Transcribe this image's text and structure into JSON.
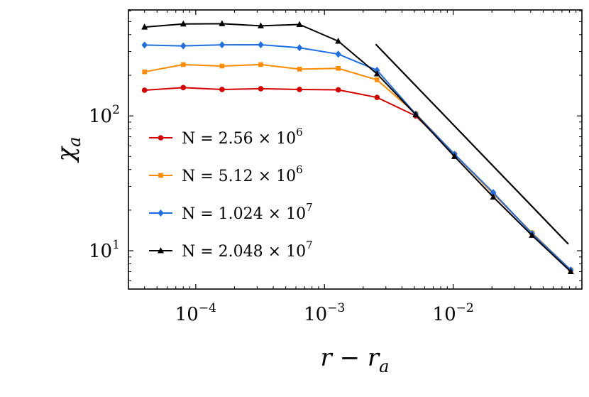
{
  "chart_data": {
    "type": "line",
    "xscale": "log",
    "yscale": "log",
    "xlim": [
      3e-05,
      0.1
    ],
    "ylim": [
      5.2,
      610
    ],
    "xlabel": "r − r",
    "xlabel_sub": "a",
    "ylabel": "χ",
    "ylabel_sub": "a",
    "x_ticks": [
      {
        "value": 0.0001,
        "base": "10",
        "exp": "−4"
      },
      {
        "value": 0.001,
        "base": "10",
        "exp": "−3"
      },
      {
        "value": 0.01,
        "base": "10",
        "exp": "−2"
      }
    ],
    "y_ticks": [
      {
        "value": 10,
        "base": "10",
        "exp": "1"
      },
      {
        "value": 100,
        "base": "10",
        "exp": "2"
      }
    ],
    "legend_position": "left-middle",
    "x": [
      4e-05,
      8e-05,
      0.00016,
      0.00032,
      0.00064,
      0.00128,
      0.00256,
      0.00512,
      0.01024,
      0.02048,
      0.04096,
      0.08192
    ],
    "series": [
      {
        "name": "N = 2.56 × 10",
        "exp": "6",
        "color": "#d40000",
        "marker": "circle",
        "values": [
          155,
          162,
          157,
          159,
          157,
          156,
          137,
          100,
          52,
          26.5,
          13.5,
          7.2
        ]
      },
      {
        "name": "N = 5.12 × 10",
        "exp": "6",
        "color": "#ff8c00",
        "marker": "square",
        "values": [
          212,
          240,
          234,
          240,
          222,
          225,
          185,
          104,
          52,
          26.5,
          13.6,
          7.2
        ]
      },
      {
        "name": "N = 1.024 × 10",
        "exp": "7",
        "color": "#1f6fe0",
        "marker": "diamond",
        "values": [
          335,
          330,
          336,
          337,
          320,
          287,
          218,
          103,
          52,
          27,
          13.4,
          7.2
        ]
      },
      {
        "name": "N = 2.048 × 10",
        "exp": "7",
        "color": "#000000",
        "marker": "triangle",
        "values": [
          455,
          480,
          482,
          465,
          476,
          358,
          205,
          102,
          50,
          25,
          13,
          7.0
        ]
      }
    ],
    "reference_line": {
      "x": [
        0.0025,
        0.0785
      ],
      "y": [
        340,
        11.2
      ],
      "color": "#000000"
    }
  }
}
